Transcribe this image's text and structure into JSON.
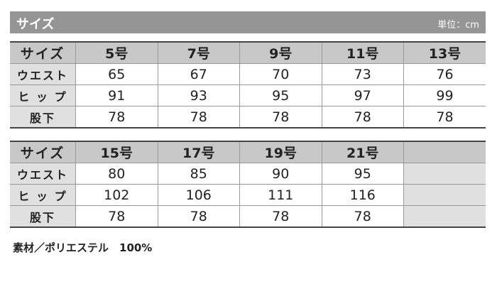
{
  "header": {
    "title": "サイズ",
    "unit": "単位：cm"
  },
  "tables": [
    {
      "header": [
        "サイズ",
        "5号",
        "7号",
        "9号",
        "11号",
        "13号"
      ],
      "rows": [
        [
          "ウエスト",
          "65",
          "67",
          "70",
          "73",
          "76"
        ],
        [
          "ヒ ッ プ",
          "91",
          "93",
          "95",
          "97",
          "99"
        ],
        [
          "股下",
          "78",
          "78",
          "78",
          "78",
          "78"
        ]
      ]
    },
    {
      "header": [
        "サイズ",
        "15号",
        "17号",
        "19号",
        "21号",
        ""
      ],
      "rows": [
        [
          "ウエスト",
          "80",
          "85",
          "90",
          "95",
          ""
        ],
        [
          "ヒ ッ プ",
          "102",
          "106",
          "111",
          "116",
          ""
        ],
        [
          "股下",
          "78",
          "78",
          "78",
          "78",
          ""
        ]
      ]
    }
  ],
  "material": "素材／ポリエステル　100%"
}
